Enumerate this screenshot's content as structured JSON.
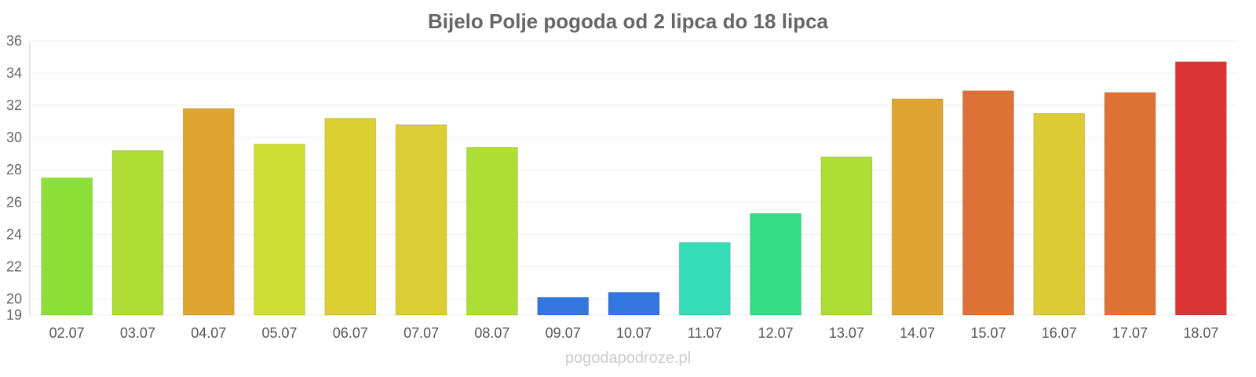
{
  "chart_data": {
    "type": "bar",
    "title": "Bijelo Polje pogoda od 2 lipca do 18 lipca",
    "source": "pogodapodroze.pl",
    "categories": [
      "02.07",
      "03.07",
      "04.07",
      "05.07",
      "06.07",
      "07.07",
      "08.07",
      "09.07",
      "10.07",
      "11.07",
      "12.07",
      "13.07",
      "14.07",
      "15.07",
      "16.07",
      "17.07",
      "18.07"
    ],
    "values": [
      27.5,
      29.2,
      31.8,
      29.6,
      31.2,
      30.8,
      29.4,
      20.1,
      20.4,
      23.5,
      25.3,
      28.8,
      32.4,
      32.9,
      31.5,
      32.8,
      34.7
    ],
    "colors": [
      "#8be036",
      "#aede36",
      "#dea532",
      "#cede34",
      "#dbcf34",
      "#dbcd34",
      "#aede36",
      "#3276de",
      "#3276de",
      "#36dbb7",
      "#36db86",
      "#aede36",
      "#dea532",
      "#de7236",
      "#dbcb34",
      "#de7236",
      "#db3434"
    ],
    "ylim": [
      19,
      36
    ],
    "yticks": [
      19,
      20,
      22,
      24,
      26,
      28,
      30,
      32,
      34,
      36
    ],
    "grid": true,
    "xlabel": "",
    "ylabel": ""
  }
}
